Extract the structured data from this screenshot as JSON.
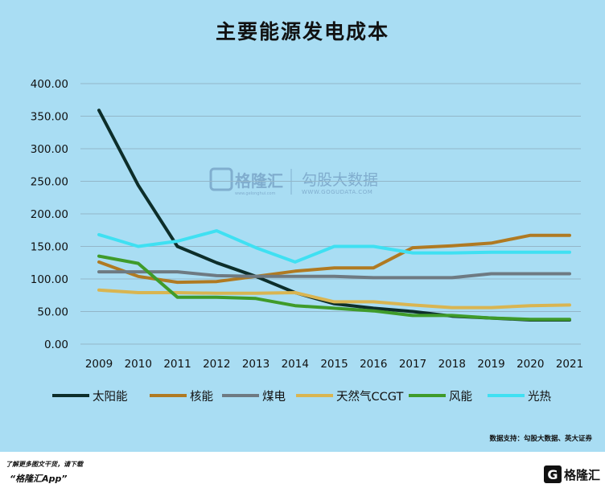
{
  "chart_data": {
    "type": "line",
    "title": "主要能源发电成本",
    "xlabel": "",
    "ylabel": "",
    "x": [
      "2009",
      "2010",
      "2011",
      "2012",
      "2013",
      "2014",
      "2015",
      "2016",
      "2017",
      "2018",
      "2019",
      "2020",
      "2021"
    ],
    "ylim": [
      0,
      400
    ],
    "yticks": [
      "0.00",
      "50.00",
      "100.00",
      "150.00",
      "200.00",
      "250.00",
      "300.00",
      "350.00",
      "400.00"
    ],
    "grid": true,
    "legend_position": "bottom",
    "series": [
      {
        "name": "太阳能",
        "color": "#0d2e2a",
        "values": [
          359,
          244,
          150,
          125,
          104,
          79,
          62,
          55,
          50,
          43,
          40,
          37,
          37
        ]
      },
      {
        "name": "核能",
        "color": "#b07a22",
        "values": [
          126,
          104,
          95,
          96,
          104,
          112,
          117,
          117,
          148,
          151,
          155,
          167,
          167
        ]
      },
      {
        "name": "煤电",
        "color": "#6e7a82",
        "values": [
          111,
          111,
          111,
          105,
          104,
          104,
          104,
          102,
          102,
          102,
          108,
          108,
          108
        ]
      },
      {
        "name": "天然气CCGT",
        "color": "#d9b551",
        "values": [
          83,
          79,
          79,
          78,
          78,
          79,
          65,
          65,
          60,
          56,
          56,
          59,
          60
        ]
      },
      {
        "name": "风能",
        "color": "#3f9b2a",
        "values": [
          135,
          124,
          72,
          72,
          70,
          59,
          55,
          51,
          44,
          44,
          40,
          38,
          38
        ]
      },
      {
        "name": "光热",
        "color": "#3fe0f2",
        "values": [
          168,
          150,
          158,
          174,
          148,
          126,
          150,
          150,
          140,
          140,
          141,
          141,
          141
        ]
      }
    ]
  },
  "watermark": {
    "brand": "格隆汇",
    "brand_url": "www.gelonghui.com",
    "partner": "勾股大数据",
    "partner_url": "WWW.GOGUDATA.COM"
  },
  "footer": {
    "source": "数据支持：勾股大数据、英大证券",
    "promo_line1": "了解更多图文干货，请下载",
    "promo_line2": "“格隆汇App”",
    "logo_mark": "G",
    "logo_text": "格隆汇"
  }
}
